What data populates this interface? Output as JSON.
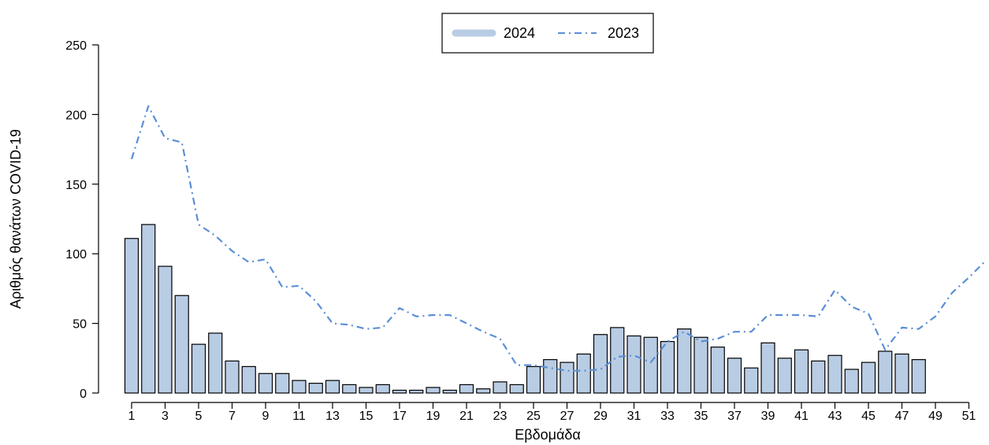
{
  "chart_data": {
    "type": "bar",
    "xlabel": "Εβδομάδα",
    "ylabel": "Αριθμός θανάτων COVID-19",
    "ylim": [
      0,
      250
    ],
    "yticks": [
      0,
      50,
      100,
      150,
      200,
      250
    ],
    "xticks": [
      1,
      3,
      5,
      7,
      9,
      11,
      13,
      15,
      17,
      19,
      21,
      23,
      25,
      27,
      29,
      31,
      33,
      35,
      37,
      39,
      41,
      43,
      45,
      47,
      49,
      51
    ],
    "legend_position": "top-center",
    "series": [
      {
        "name": "2024",
        "type": "bar",
        "color": "#b8cce4",
        "x": [
          1,
          2,
          3,
          4,
          5,
          6,
          7,
          8,
          9,
          10,
          11,
          12,
          13,
          14,
          15,
          16,
          17,
          18,
          19,
          20,
          21,
          22,
          23,
          24,
          25,
          26,
          27,
          28,
          29,
          30,
          31,
          32,
          33,
          34,
          35,
          36,
          37,
          38,
          39,
          40,
          41,
          42,
          43,
          44,
          45,
          46,
          47,
          48
        ],
        "values": [
          111,
          121,
          91,
          70,
          35,
          43,
          23,
          19,
          14,
          14,
          9,
          7,
          9,
          6,
          4,
          6,
          2,
          2,
          4,
          2,
          6,
          3,
          8,
          6,
          19,
          24,
          22,
          28,
          42,
          47,
          41,
          40,
          37,
          46,
          40,
          33,
          25,
          18,
          36,
          25,
          31,
          23,
          27,
          17,
          22,
          30,
          28,
          24
        ]
      },
      {
        "name": "2023",
        "type": "line",
        "style": "dash-dot",
        "color": "#5b8fd6",
        "x": [
          1,
          2,
          3,
          4,
          5,
          6,
          7,
          8,
          9,
          10,
          11,
          12,
          13,
          14,
          15,
          16,
          17,
          18,
          19,
          20,
          21,
          22,
          23,
          24,
          25,
          26,
          27,
          28,
          29,
          30,
          31,
          32,
          33,
          34,
          35,
          36,
          37,
          38,
          39,
          40,
          41,
          42,
          43,
          44,
          45,
          46,
          47,
          48,
          49,
          50,
          51,
          52
        ],
        "values": [
          168,
          206,
          183,
          180,
          121,
          113,
          102,
          94,
          96,
          76,
          77,
          66,
          50,
          49,
          46,
          47,
          61,
          55,
          56,
          56,
          50,
          44,
          39,
          20,
          20,
          18,
          16,
          16,
          17,
          26,
          27,
          22,
          37,
          44,
          37,
          39,
          44,
          44,
          56,
          56,
          56,
          55,
          74,
          62,
          57,
          31,
          47,
          46,
          55,
          72,
          83,
          95
        ]
      }
    ]
  }
}
